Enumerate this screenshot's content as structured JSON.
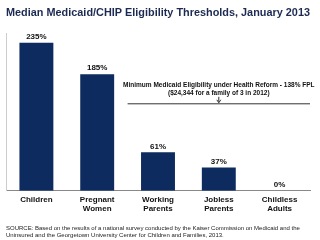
{
  "chart_data": {
    "type": "bar",
    "title": "Median Medicaid/CHIP Eligibility Thresholds, January 2013",
    "categories": [
      "Children",
      "Pregnant Women",
      "Working Parents",
      "Jobless Parents",
      "Childless Adults"
    ],
    "values": [
      235,
      185,
      61,
      37,
      0
    ],
    "value_labels": [
      "235%",
      "185%",
      "61%",
      "37%",
      "0%"
    ],
    "color": "#0d2b5e",
    "ylim": [
      0,
      250
    ],
    "grid": false,
    "data_labels": true,
    "tick_labels": "x",
    "reference_line": {
      "value": 138,
      "label": [
        "Minimum Medicaid Eligibility under Health Reform - 138% FPL",
        "($24,344 for a family of 3 in 2012)"
      ]
    },
    "source": "SOURCE: Based on the results of a national survey conducted by the Kaiser Commission on Medicaid and the Uninsured and the Georgetown University Center for Children and Families, 2013."
  }
}
